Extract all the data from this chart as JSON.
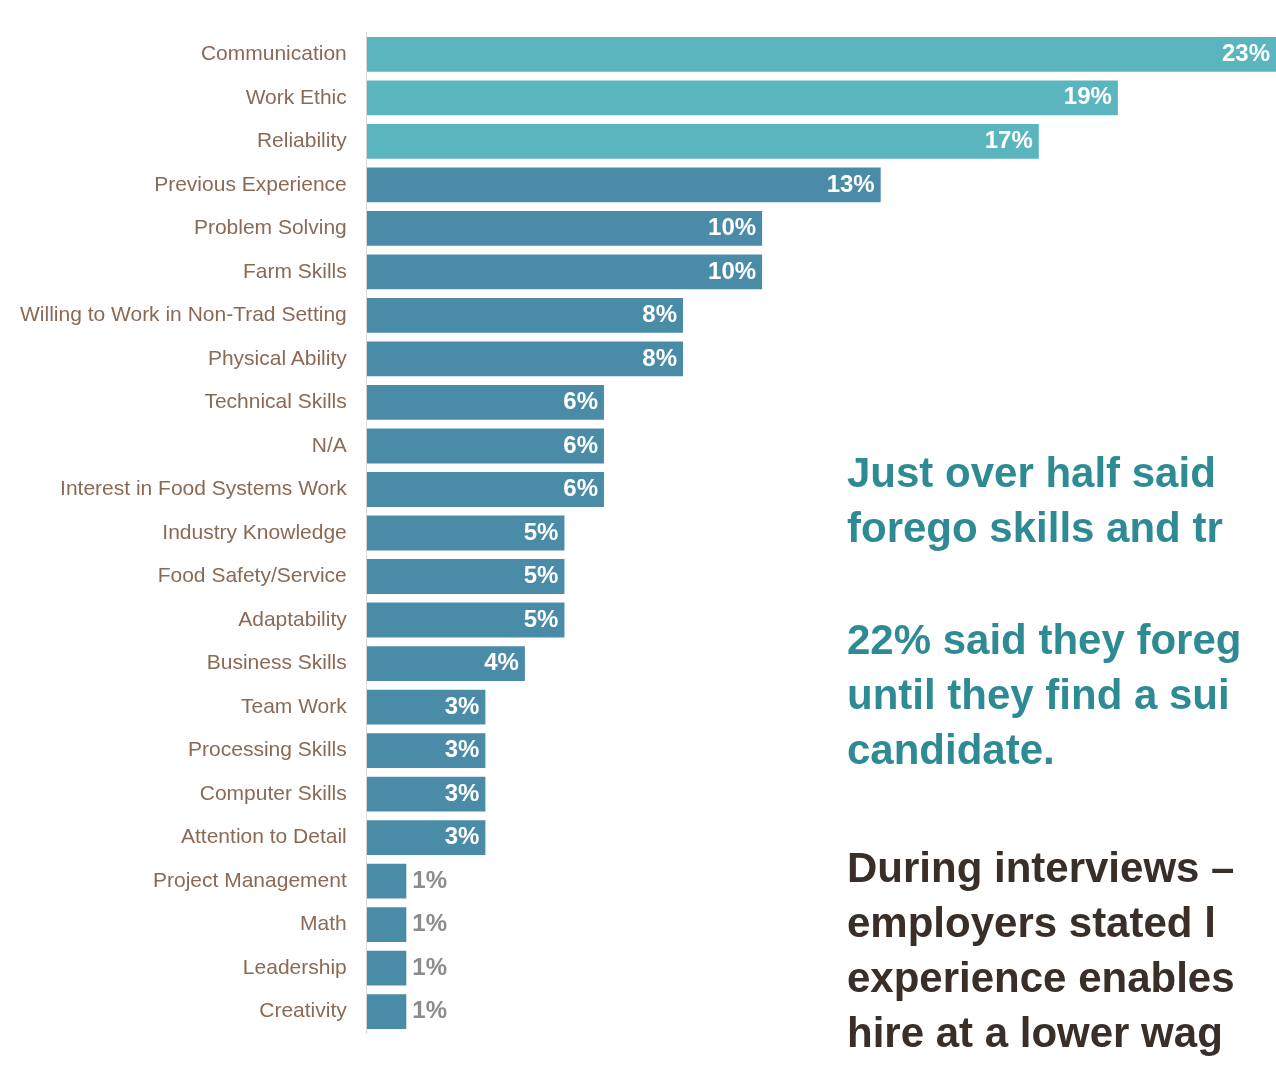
{
  "chart_data": {
    "type": "bar",
    "orientation": "horizontal",
    "categories": [
      "Communication",
      "Work Ethic",
      "Reliability",
      "Previous Experience",
      "Problem Solving",
      "Farm Skills",
      "Willing to Work in Non-Trad Setting",
      "Physical Ability",
      "Technical Skills",
      "N/A",
      "Interest in Food Systems Work",
      "Industry Knowledge",
      "Food Safety/Service",
      "Adaptability",
      "Business Skills",
      "Team Work",
      "Processing Skills",
      "Computer Skills",
      "Attention to Detail",
      "Project Management",
      "Math",
      "Leadership",
      "Creativity"
    ],
    "values": [
      23,
      19,
      17,
      13,
      10,
      10,
      8,
      8,
      6,
      6,
      6,
      5,
      5,
      5,
      4,
      3,
      3,
      3,
      3,
      1,
      1,
      1,
      1
    ],
    "value_labels": [
      "23%",
      "19%",
      "17%",
      "13%",
      "10%",
      "10%",
      "8%",
      "8%",
      "6%",
      "6%",
      "6%",
      "5%",
      "5%",
      "5%",
      "4%",
      "3%",
      "3%",
      "3%",
      "3%",
      "1%",
      "1%",
      "1%",
      "1%"
    ],
    "colors": [
      "#5ab5bf",
      "#5ab5bf",
      "#5ab5bf",
      "#4a8ba8",
      "#4a8ba8",
      "#4a8ba8",
      "#4a8ba8",
      "#4a8ba8",
      "#4a8ba8",
      "#4a8ba8",
      "#4a8ba8",
      "#4a8ba8",
      "#4a8ba8",
      "#4a8ba8",
      "#4a8ba8",
      "#4a8ba8",
      "#4a8ba8",
      "#4a8ba8",
      "#4a8ba8",
      "#4a8ba8",
      "#4a8ba8",
      "#4a8ba8",
      "#4a8ba8"
    ],
    "xlim": [
      0,
      23
    ],
    "tick_labels": "y",
    "grid": false,
    "legend": false,
    "annotations": [
      "Just over half said\nforego skills and tr",
      "22% said they foreg\nuntil they find a sui\ncandidate.",
      "During interviews –\nemployers stated l\nexperience enables\nhire at a lower wag"
    ]
  }
}
